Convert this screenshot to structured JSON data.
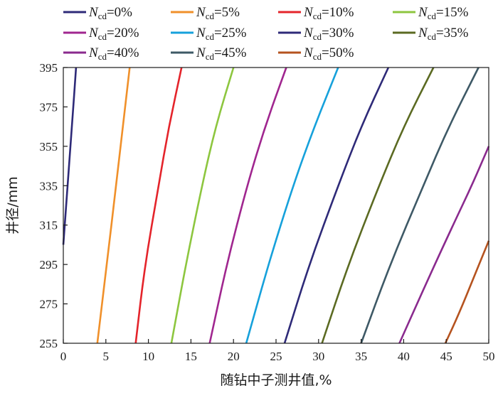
{
  "chart_data": {
    "type": "line",
    "title": "",
    "xlabel": "随钻中子测井值,%",
    "ylabel": "井径/mm",
    "xlim": [
      0,
      50
    ],
    "ylim": [
      255,
      395
    ],
    "xticks": [
      "0",
      "5",
      "10",
      "15",
      "20",
      "25",
      "30",
      "35",
      "40",
      "45",
      "50"
    ],
    "yticks": [
      "255",
      "275",
      "295",
      "315",
      "335",
      "355",
      "375",
      "395"
    ],
    "grid": false,
    "legend_position": "top",
    "series": [
      {
        "name": "N_cd=0%",
        "label_base": "N",
        "label_sub": "cd",
        "label_rest": "=0%",
        "color": "#2e2a78",
        "points": [
          [
            0,
            305
          ],
          [
            0.5,
            335
          ],
          [
            1.0,
            365
          ],
          [
            1.5,
            395
          ]
        ]
      },
      {
        "name": "N_cd=5%",
        "label_base": "N",
        "label_sub": "cd",
        "label_rest": "=5%",
        "color": "#f0902a",
        "points": [
          [
            4.0,
            255
          ],
          [
            5.1,
            295
          ],
          [
            6.2,
            335
          ],
          [
            7.0,
            365
          ],
          [
            7.8,
            395
          ]
        ]
      },
      {
        "name": "N_cd=10%",
        "label_base": "N",
        "label_sub": "cd",
        "label_rest": "=10%",
        "color": "#e4242b",
        "points": [
          [
            8.5,
            255
          ],
          [
            9.6,
            295
          ],
          [
            11.2,
            335
          ],
          [
            12.4,
            365
          ],
          [
            13.9,
            395
          ]
        ]
      },
      {
        "name": "N_cd=15%",
        "label_base": "N",
        "label_sub": "cd",
        "label_rest": "=15%",
        "color": "#8dc63f",
        "points": [
          [
            12.7,
            255
          ],
          [
            14.4,
            295
          ],
          [
            16.3,
            335
          ],
          [
            17.9,
            365
          ],
          [
            20.0,
            395
          ]
        ]
      },
      {
        "name": "N_cd=20%",
        "label_base": "N",
        "label_sub": "cd",
        "label_rest": "=20%",
        "color": "#a0268f",
        "points": [
          [
            17.2,
            255
          ],
          [
            19.2,
            295
          ],
          [
            21.6,
            335
          ],
          [
            23.7,
            365
          ],
          [
            26.2,
            395
          ]
        ]
      },
      {
        "name": "N_cd=25%",
        "label_base": "N",
        "label_sub": "cd",
        "label_rest": "=25%",
        "color": "#16a1db",
        "points": [
          [
            21.5,
            255
          ],
          [
            24.1,
            295
          ],
          [
            27.0,
            335
          ],
          [
            29.5,
            365
          ],
          [
            32.3,
            395
          ]
        ]
      },
      {
        "name": "N_cd=30%",
        "label_base": "N",
        "label_sub": "cd",
        "label_rest": "=30%",
        "color": "#2e2a78",
        "points": [
          [
            26.0,
            255
          ],
          [
            28.9,
            295
          ],
          [
            32.3,
            335
          ],
          [
            35.0,
            365
          ],
          [
            38.2,
            395
          ]
        ]
      },
      {
        "name": "N_cd=35%",
        "label_base": "N",
        "label_sub": "cd",
        "label_rest": "=35%",
        "color": "#5b6a22",
        "points": [
          [
            30.4,
            255
          ],
          [
            33.5,
            295
          ],
          [
            37.1,
            335
          ],
          [
            40.0,
            365
          ],
          [
            43.5,
            395
          ]
        ]
      },
      {
        "name": "N_cd=40%",
        "label_base": "N",
        "label_sub": "cd",
        "label_rest": "=40%",
        "color": "#8a2a8e",
        "points": [
          [
            39.5,
            255
          ],
          [
            42.6,
            285
          ],
          [
            45.8,
            315
          ],
          [
            48.0,
            335
          ],
          [
            50.0,
            355
          ]
        ]
      },
      {
        "name": "N_cd=45%",
        "label_base": "N",
        "label_sub": "cd",
        "label_rest": "=45%",
        "color": "#3e5966",
        "points": [
          [
            35.0,
            255
          ],
          [
            38.4,
            295
          ],
          [
            42.3,
            335
          ],
          [
            45.3,
            365
          ],
          [
            48.8,
            395
          ]
        ]
      },
      {
        "name": "N_cd=50%",
        "label_base": "N",
        "label_sub": "cd",
        "label_rest": "=50%",
        "color": "#b5531f",
        "points": [
          [
            44.9,
            255
          ],
          [
            46.5,
            270
          ],
          [
            48.2,
            288
          ],
          [
            50.0,
            307
          ]
        ]
      }
    ]
  }
}
